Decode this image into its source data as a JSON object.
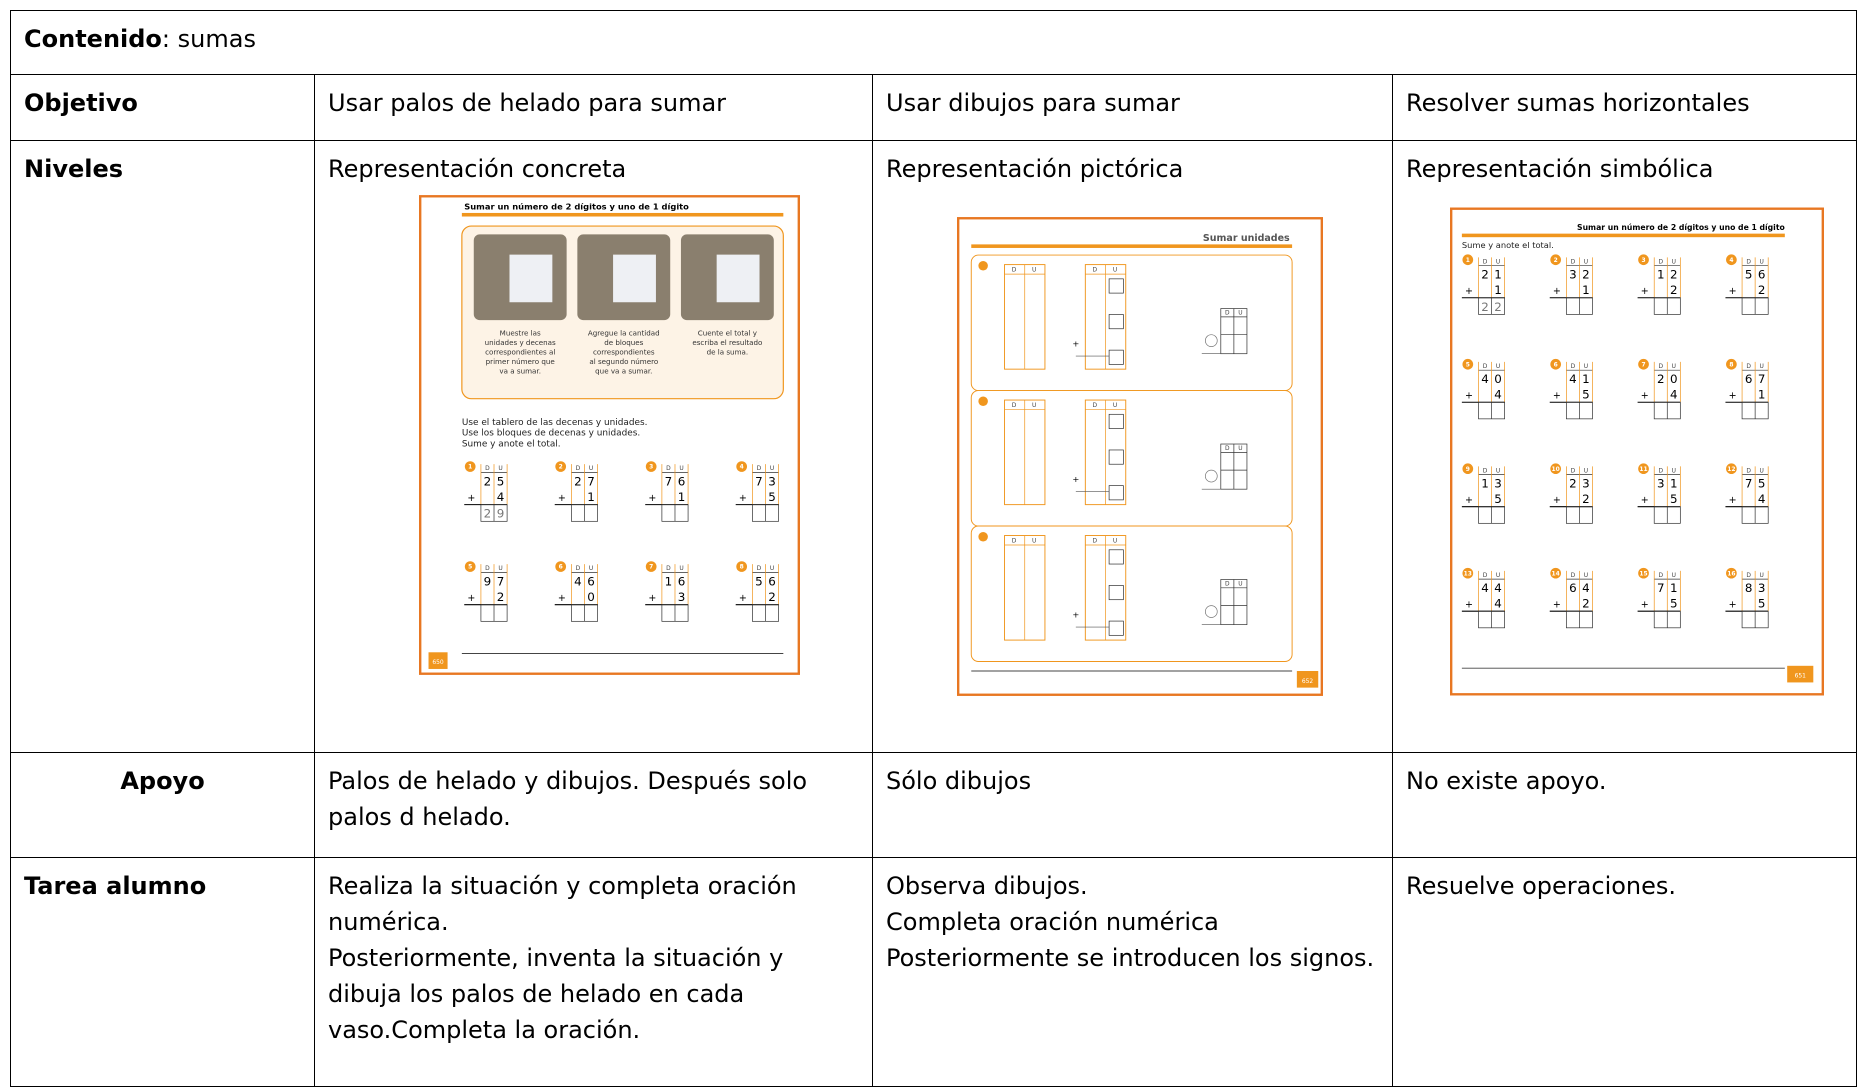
{
  "table": {
    "header": {
      "label": "Contenido",
      "text": ": sumas"
    },
    "rows": [
      {
        "label": "Objetivo",
        "cells": [
          "Usar palos de helado para sumar",
          "Usar dibujos para sumar",
          "Resolver sumas horizontales"
        ]
      },
      {
        "label": "Niveles",
        "cells": [
          "Representación concreta",
          "Representación pictórica",
          "Representación simbólica"
        ]
      },
      {
        "label": "Apoyo",
        "cells": [
          "Palos de helado y dibujos. Después solo palos d helado.",
          "Sólo dibujos",
          "No existe apoyo."
        ]
      },
      {
        "label": "Tarea alumno",
        "cells": [
          [
            "Realiza la situación y completa oración numérica.",
            "Posteriormente, inventa la situación y dibuja los palos de helado en cada vaso.Completa la oración."
          ],
          [
            "Observa dibujos.",
            "Completa oración numérica",
            "Posteriormente se introducen los signos."
          ],
          [
            "Resuelve operaciones."
          ]
        ]
      }
    ]
  },
  "worksheets": [
    {
      "title": "Sumar un número de 2 dígitos y uno de 1 dígito",
      "captions": [
        [
          "Muestre las",
          "unidades y decenas",
          "correspondientes al",
          "primer número que",
          "va a sumar."
        ],
        [
          "Agregue la cantidad",
          "de bloques",
          "correspondientes",
          "al segundo número",
          "que va a sumar."
        ],
        [
          "Cuente el total y",
          "escriba el resultado",
          "de la suma."
        ]
      ],
      "instructions": [
        "Use el tablero de las decenas y unidades.",
        "Use los bloques de decenas y unidades.",
        "Sume y anote el total."
      ],
      "place_headers": [
        "D",
        "U"
      ],
      "plus_sign": "+",
      "exercises": [
        {
          "number": "1",
          "top": [
            "2",
            "5"
          ],
          "add": "4",
          "result": [
            "2",
            "9"
          ]
        },
        {
          "number": "2",
          "top": [
            "2",
            "7"
          ],
          "add": "1"
        },
        {
          "number": "3",
          "top": [
            "7",
            "6"
          ],
          "add": "1"
        },
        {
          "number": "4",
          "top": [
            "7",
            "3"
          ],
          "add": "5"
        },
        {
          "number": "5",
          "top": [
            "9",
            "7"
          ],
          "add": "2"
        },
        {
          "number": "6",
          "top": [
            "4",
            "6"
          ],
          "add": "0"
        },
        {
          "number": "7",
          "top": [
            "1",
            "6"
          ],
          "add": "3"
        },
        {
          "number": "8",
          "top": [
            "5",
            "6"
          ],
          "add": "2"
        }
      ],
      "page": "650"
    },
    {
      "title": "Sumar unidades",
      "place_headers": [
        "D",
        "U"
      ],
      "plus_sign": "+",
      "page": "652"
    },
    {
      "title": "Sumar un número de 2 dígitos y uno de 1 dígito",
      "instructions": [
        "Sume y anote el total."
      ],
      "place_headers": [
        "D",
        "U"
      ],
      "plus_sign": "+",
      "exercises": [
        {
          "number": "1",
          "top": [
            "2",
            "1"
          ],
          "add": "1",
          "result": [
            "2",
            "2"
          ]
        },
        {
          "number": "2",
          "top": [
            "3",
            "2"
          ],
          "add": "1"
        },
        {
          "number": "3",
          "top": [
            "1",
            "2"
          ],
          "add": "2"
        },
        {
          "number": "4",
          "top": [
            "5",
            "6"
          ],
          "add": "2"
        },
        {
          "number": "5",
          "top": [
            "4",
            "0"
          ],
          "add": "4"
        },
        {
          "number": "6",
          "top": [
            "4",
            "1"
          ],
          "add": "5"
        },
        {
          "number": "7",
          "top": [
            "2",
            "0"
          ],
          "add": "4"
        },
        {
          "number": "8",
          "top": [
            "6",
            "7"
          ],
          "add": "1"
        },
        {
          "number": "9",
          "top": [
            "1",
            "3"
          ],
          "add": "5"
        },
        {
          "number": "10",
          "top": [
            "2",
            "3"
          ],
          "add": "2"
        },
        {
          "number": "11",
          "top": [
            "3",
            "1"
          ],
          "add": "5"
        },
        {
          "number": "12",
          "top": [
            "7",
            "5"
          ],
          "add": "4"
        },
        {
          "number": "13",
          "top": [
            "4",
            "4"
          ],
          "add": "4"
        },
        {
          "number": "14",
          "top": [
            "6",
            "4"
          ],
          "add": "2"
        },
        {
          "number": "15",
          "top": [
            "7",
            "1"
          ],
          "add": "5"
        },
        {
          "number": "16",
          "top": [
            "8",
            "3"
          ],
          "add": "5"
        }
      ],
      "page": "651"
    }
  ]
}
